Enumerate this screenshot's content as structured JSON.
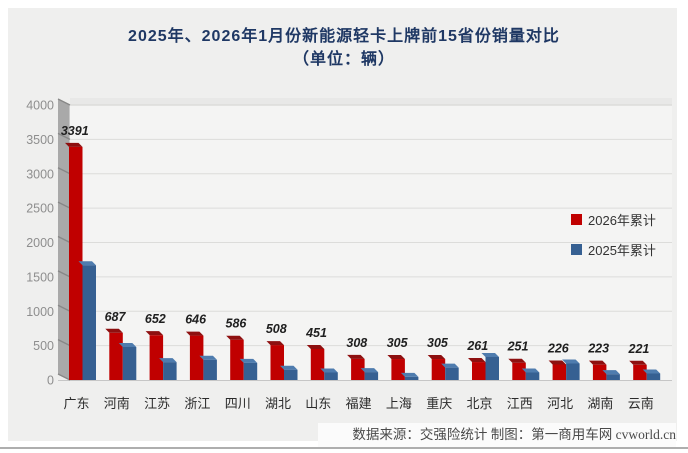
{
  "title": {
    "line1": "2025年、2026年1月份新能源轻卡上牌前15省份销量对比",
    "line2": "（单位：辆）"
  },
  "footer": {
    "source": "数据来源：交强险统计 制图：第一商用车网 cvworld.cn"
  },
  "colors": {
    "bar_2026_front": "#c00000",
    "bar_2026_top": "#8e1010",
    "bar_2025_front": "#366092",
    "bar_2025_top": "#4f7cae",
    "title_text": "#1f3864",
    "panel_bg": "#efefee",
    "plot_bg": "#f4f4f3",
    "grid_line": "#dcdcda",
    "wall_gray": "#a9a9a9"
  },
  "chart_data": {
    "type": "bar",
    "style": "3d-clustered-column",
    "title": "2025年、2026年1月份新能源轻卡上牌前15省份销量对比",
    "subtitle": "（单位：辆）",
    "categories": [
      "广东",
      "河南",
      "江苏",
      "浙江",
      "四川",
      "湖北",
      "山东",
      "福建",
      "上海",
      "重庆",
      "北京",
      "江西",
      "河北",
      "湖南",
      "云南"
    ],
    "series": [
      {
        "name": "2026年累计",
        "color": "#c00000",
        "values": [
          3391,
          687,
          652,
          646,
          586,
          508,
          451,
          308,
          305,
          305,
          261,
          251,
          226,
          223,
          221
        ],
        "data_labels_shown": true
      },
      {
        "name": "2025年累计",
        "color": "#366092",
        "values": [
          1670,
          480,
          260,
          295,
          250,
          150,
          110,
          115,
          45,
          180,
          335,
          110,
          240,
          85,
          95
        ],
        "data_labels_shown": false,
        "values_estimated_from_gridlines": true
      }
    ],
    "ylim": [
      0,
      4000
    ],
    "ytick_step": 500,
    "grid": true,
    "legend_position": "middle-right",
    "xlabel": "",
    "ylabel": ""
  }
}
